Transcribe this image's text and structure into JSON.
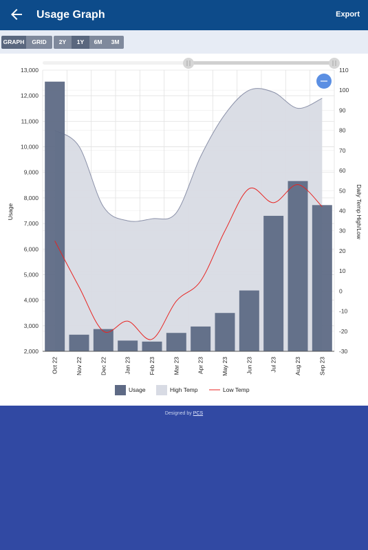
{
  "header": {
    "title": "Usage Graph",
    "export_label": "Export",
    "back_icon": "arrow-left-icon"
  },
  "view_toggle": {
    "graph_label": "GRAPH",
    "grid_label": "GRID",
    "active": "GRAPH"
  },
  "range_toggle": {
    "options": [
      "2Y",
      "1Y",
      "6M",
      "3M"
    ],
    "active": "1Y"
  },
  "legend": {
    "usage": "Usage",
    "high": "High Temp",
    "low": "Low Temp"
  },
  "footer": {
    "prefix": "Designed by ",
    "link": "PCS"
  },
  "colors": {
    "appbar": "#0d4b8a",
    "page_bg": "#3149a3",
    "usage_bar": "#5e6a85",
    "high_area": "#d8dbe4",
    "high_line": "#8a90a8",
    "low_line": "#e8221f",
    "zoom_btn": "#5b8fe3"
  },
  "zoom_button_icon": "minus-icon",
  "chart_data": {
    "type": "bar",
    "categories": [
      "Oct 22",
      "Nov 22",
      "Dec 22",
      "Jan 23",
      "Feb 23",
      "Mar 23",
      "Apr 23",
      "May 23",
      "Jun 23",
      "Jul 23",
      "Aug 23",
      "Sep 23"
    ],
    "series": [
      {
        "name": "Usage",
        "type": "bar",
        "axis": "left",
        "values": [
          12550,
          2650,
          2870,
          2420,
          2380,
          2720,
          2970,
          3500,
          4380,
          7300,
          8660,
          7720
        ]
      },
      {
        "name": "High Temp",
        "type": "area",
        "axis": "right",
        "values": [
          80,
          72,
          42,
          35,
          36,
          39,
          67,
          88,
          100,
          99,
          91,
          96
        ]
      },
      {
        "name": "Low Temp",
        "type": "line",
        "axis": "right",
        "values": [
          25,
          2,
          -20,
          -15,
          -24,
          -5,
          5,
          30,
          51,
          44,
          53,
          42
        ]
      }
    ],
    "ylabel": "Usage",
    "y2label": "Daily Temp High/Low",
    "ylim": [
      2000,
      13000
    ],
    "y2lim": [
      -30,
      110
    ],
    "yticks": [
      2000,
      3000,
      4000,
      5000,
      6000,
      7000,
      8000,
      9000,
      10000,
      11000,
      12000,
      13000
    ],
    "yticklabels": [
      "2,000",
      "3,000",
      "4,000",
      "5,000",
      "6,000",
      "7,000",
      "8,000",
      "9,000",
      "10,000",
      "11,000",
      "12,000",
      "13,000"
    ],
    "y2ticks": [
      -30,
      -20,
      -10,
      0,
      10,
      20,
      30,
      40,
      50,
      60,
      70,
      80,
      90,
      100,
      110
    ],
    "grid": true,
    "legend_position": "bottom"
  }
}
